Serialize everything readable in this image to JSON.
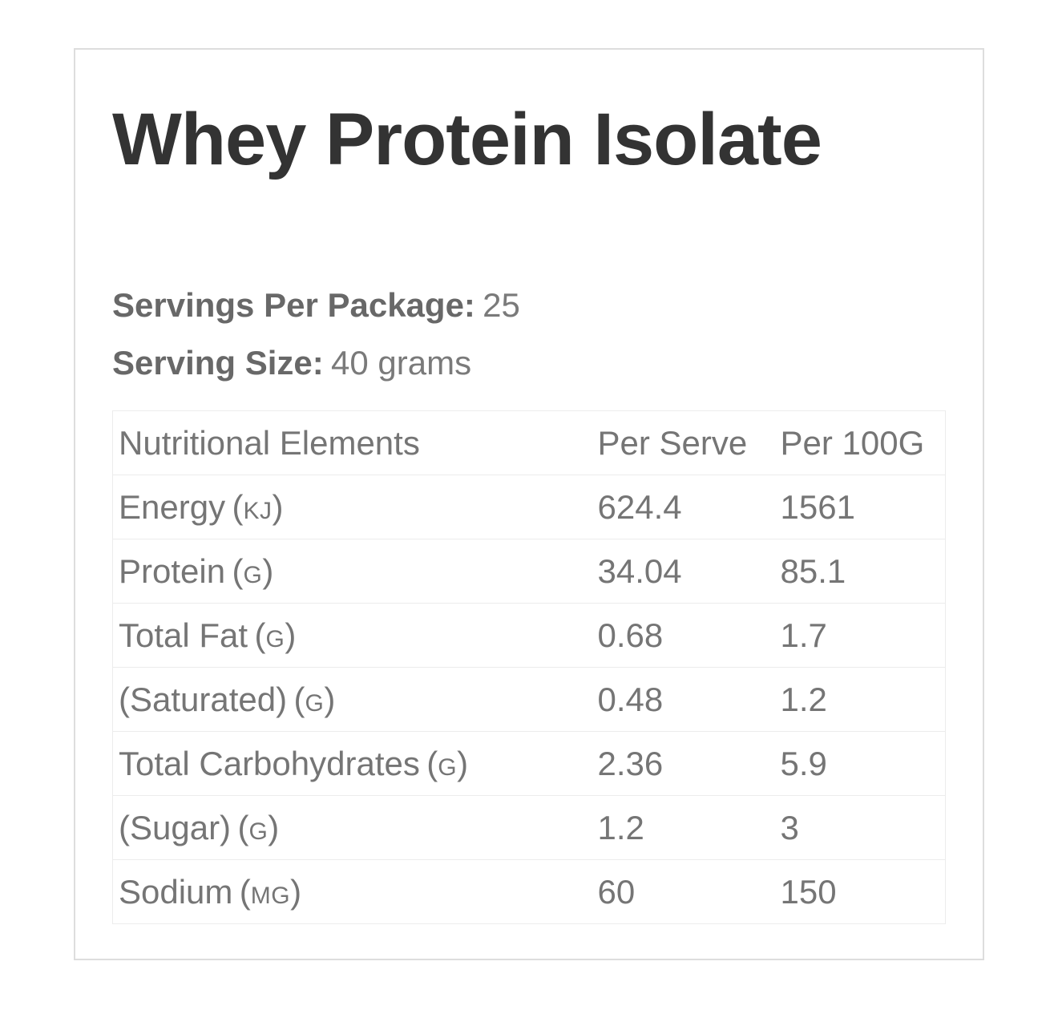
{
  "page": {
    "title": "Whey Protein Isolate"
  },
  "meta": {
    "servings_per_package": {
      "label": "Servings Per Package:",
      "value": "25"
    },
    "serving_size": {
      "label": "Serving Size:",
      "value": "40 grams"
    }
  },
  "table": {
    "headers": [
      "Nutritional Elements",
      "Per Serve",
      "Per 100G"
    ],
    "unit_open": "(",
    "unit_close": ")",
    "rows": [
      {
        "name": "Energy",
        "unit": "KJ",
        "per_serve": "624.4",
        "per_100g": "1561"
      },
      {
        "name": "Protein",
        "unit": "G",
        "per_serve": "34.04",
        "per_100g": "85.1"
      },
      {
        "name": "Total Fat",
        "unit": "G",
        "per_serve": "0.68",
        "per_100g": "1.7"
      },
      {
        "name": "(Saturated)",
        "unit": "G",
        "per_serve": "0.48",
        "per_100g": "1.2"
      },
      {
        "name": "Total Carbohydrates",
        "unit": "G",
        "per_serve": "2.36",
        "per_100g": "5.9"
      },
      {
        "name": "(Sugar)",
        "unit": "G",
        "per_serve": "1.2",
        "per_100g": "3"
      },
      {
        "name": "Sodium",
        "unit": "MG",
        "per_serve": "60",
        "per_100g": "150"
      }
    ]
  },
  "colors": {
    "title_text": "#333333",
    "body_text": "#777777",
    "card_border": "#dddddd",
    "row_border": "#ececec",
    "background": "#ffffff"
  }
}
